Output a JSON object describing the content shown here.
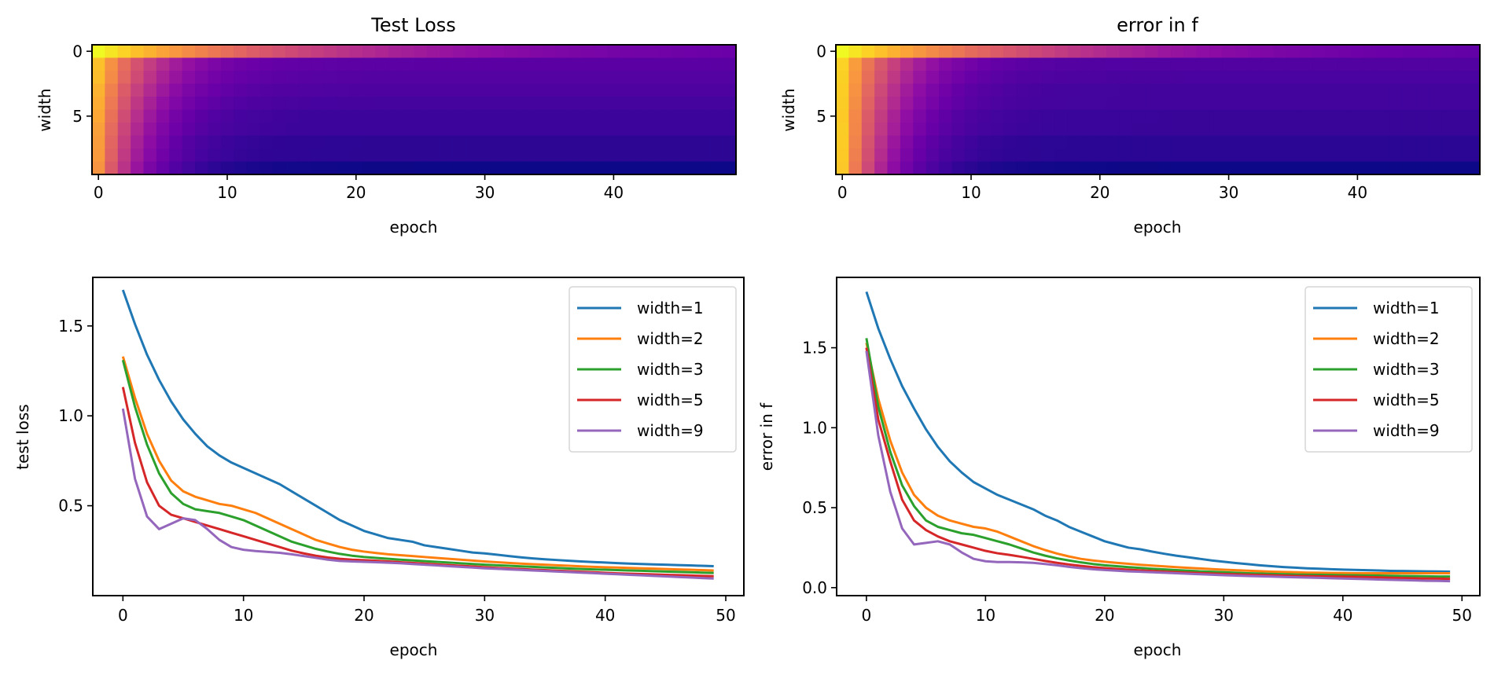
{
  "chart_data": [
    {
      "type": "heatmap",
      "title": "Test Loss",
      "xlabel": "epoch",
      "ylabel": "width",
      "colormap": "plasma",
      "x_ticks": [
        0,
        10,
        20,
        30,
        40
      ],
      "y_ticks": [
        0,
        5
      ],
      "n_rows": 10,
      "n_cols": 50,
      "row_start_values": [
        1.7,
        1.33,
        1.31,
        1.24,
        1.2,
        1.16,
        1.12,
        1.1,
        1.08,
        1.04
      ],
      "row_end_values": [
        0.16,
        0.15,
        0.14,
        0.13,
        0.12,
        0.11,
        0.11,
        0.1,
        0.1,
        0.09
      ],
      "value_range": [
        0.09,
        1.7
      ]
    },
    {
      "type": "heatmap",
      "title": "error in f",
      "xlabel": "epoch",
      "ylabel": "width",
      "colormap": "plasma",
      "x_ticks": [
        0,
        10,
        20,
        30,
        40
      ],
      "y_ticks": [
        0,
        5
      ],
      "n_rows": 10,
      "n_cols": 50,
      "row_start_values": [
        1.85,
        1.56,
        1.55,
        1.53,
        1.52,
        1.5,
        1.52,
        1.51,
        1.5,
        1.48
      ],
      "row_end_values": [
        0.1,
        0.09,
        0.08,
        0.07,
        0.07,
        0.06,
        0.06,
        0.05,
        0.05,
        0.04
      ],
      "value_range": [
        0.04,
        1.85
      ]
    },
    {
      "type": "line",
      "title": "",
      "xlabel": "epoch",
      "ylabel": "test loss",
      "xlim": [
        -2.5,
        51.5
      ],
      "ylim": [
        0.0,
        1.77
      ],
      "x_ticks": [
        0,
        10,
        20,
        30,
        40,
        50
      ],
      "y_ticks": [
        0.5,
        1.0,
        1.5
      ],
      "y_tick_labels": [
        "0.5",
        "1.0",
        "1.5"
      ],
      "grid": false,
      "legend": "top-right",
      "x": [
        0,
        1,
        2,
        3,
        4,
        5,
        6,
        7,
        8,
        9,
        10,
        11,
        12,
        13,
        14,
        15,
        16,
        17,
        18,
        19,
        20,
        21,
        22,
        23,
        24,
        25,
        26,
        27,
        28,
        29,
        30,
        31,
        32,
        33,
        34,
        35,
        36,
        37,
        38,
        39,
        40,
        41,
        42,
        43,
        44,
        45,
        46,
        47,
        48,
        49
      ],
      "series": [
        {
          "name": "width=1",
          "color": "#1f77b4",
          "values": [
            1.7,
            1.51,
            1.34,
            1.2,
            1.08,
            0.98,
            0.9,
            0.83,
            0.78,
            0.74,
            0.71,
            0.68,
            0.65,
            0.62,
            0.58,
            0.54,
            0.5,
            0.46,
            0.42,
            0.39,
            0.36,
            0.34,
            0.32,
            0.31,
            0.3,
            0.28,
            0.27,
            0.26,
            0.25,
            0.24,
            0.235,
            0.228,
            0.22,
            0.213,
            0.207,
            0.202,
            0.198,
            0.194,
            0.19,
            0.187,
            0.184,
            0.181,
            0.178,
            0.176,
            0.174,
            0.172,
            0.17,
            0.168,
            0.166,
            0.164
          ]
        },
        {
          "name": "width=2",
          "color": "#ff7f0e",
          "values": [
            1.33,
            1.1,
            0.9,
            0.75,
            0.64,
            0.58,
            0.55,
            0.53,
            0.51,
            0.5,
            0.48,
            0.46,
            0.43,
            0.4,
            0.37,
            0.34,
            0.31,
            0.29,
            0.27,
            0.255,
            0.245,
            0.237,
            0.23,
            0.225,
            0.22,
            0.215,
            0.21,
            0.205,
            0.2,
            0.195,
            0.19,
            0.186,
            0.182,
            0.178,
            0.175,
            0.172,
            0.169,
            0.166,
            0.163,
            0.16,
            0.158,
            0.156,
            0.154,
            0.152,
            0.15,
            0.148,
            0.146,
            0.144,
            0.142,
            0.14
          ]
        },
        {
          "name": "width=3",
          "color": "#2ca02c",
          "values": [
            1.31,
            1.05,
            0.84,
            0.68,
            0.57,
            0.51,
            0.48,
            0.47,
            0.46,
            0.44,
            0.42,
            0.39,
            0.36,
            0.33,
            0.3,
            0.28,
            0.26,
            0.245,
            0.232,
            0.222,
            0.215,
            0.21,
            0.205,
            0.2,
            0.196,
            0.192,
            0.188,
            0.184,
            0.18,
            0.176,
            0.172,
            0.169,
            0.166,
            0.163,
            0.16,
            0.157,
            0.154,
            0.151,
            0.148,
            0.146,
            0.144,
            0.142,
            0.14,
            0.138,
            0.136,
            0.134,
            0.132,
            0.13,
            0.128,
            0.126
          ]
        },
        {
          "name": "width=5",
          "color": "#d62728",
          "values": [
            1.16,
            0.85,
            0.63,
            0.5,
            0.45,
            0.43,
            0.41,
            0.39,
            0.37,
            0.35,
            0.33,
            0.31,
            0.29,
            0.27,
            0.25,
            0.235,
            0.222,
            0.212,
            0.205,
            0.2,
            0.197,
            0.194,
            0.19,
            0.186,
            0.182,
            0.178,
            0.174,
            0.17,
            0.166,
            0.162,
            0.158,
            0.154,
            0.151,
            0.148,
            0.145,
            0.142,
            0.139,
            0.136,
            0.133,
            0.13,
            0.127,
            0.124,
            0.122,
            0.12,
            0.118,
            0.116,
            0.114,
            0.112,
            0.11,
            0.108
          ]
        },
        {
          "name": "width=9",
          "color": "#9467bd",
          "values": [
            1.04,
            0.65,
            0.44,
            0.37,
            0.4,
            0.43,
            0.42,
            0.37,
            0.31,
            0.27,
            0.255,
            0.248,
            0.243,
            0.238,
            0.23,
            0.22,
            0.21,
            0.2,
            0.193,
            0.19,
            0.188,
            0.186,
            0.183,
            0.18,
            0.176,
            0.172,
            0.168,
            0.164,
            0.16,
            0.156,
            0.152,
            0.149,
            0.146,
            0.143,
            0.14,
            0.137,
            0.134,
            0.131,
            0.128,
            0.125,
            0.122,
            0.119,
            0.116,
            0.113,
            0.11,
            0.107,
            0.104,
            0.101,
            0.098,
            0.095
          ]
        }
      ]
    },
    {
      "type": "line",
      "title": "",
      "xlabel": "epoch",
      "ylabel": "error in f",
      "xlim": [
        -2.5,
        51.5
      ],
      "ylim": [
        -0.05,
        1.94
      ],
      "x_ticks": [
        0,
        10,
        20,
        30,
        40,
        50
      ],
      "y_ticks": [
        0.0,
        0.5,
        1.0,
        1.5
      ],
      "y_tick_labels": [
        "0.0",
        "0.5",
        "1.0",
        "1.5"
      ],
      "grid": false,
      "legend": "top-right",
      "x": [
        0,
        1,
        2,
        3,
        4,
        5,
        6,
        7,
        8,
        9,
        10,
        11,
        12,
        13,
        14,
        15,
        16,
        17,
        18,
        19,
        20,
        21,
        22,
        23,
        24,
        25,
        26,
        27,
        28,
        29,
        30,
        31,
        32,
        33,
        34,
        35,
        36,
        37,
        38,
        39,
        40,
        41,
        42,
        43,
        44,
        45,
        46,
        47,
        48,
        49
      ],
      "series": [
        {
          "name": "width=1",
          "color": "#1f77b4",
          "values": [
            1.85,
            1.62,
            1.43,
            1.26,
            1.12,
            0.99,
            0.88,
            0.79,
            0.72,
            0.66,
            0.62,
            0.58,
            0.55,
            0.52,
            0.49,
            0.45,
            0.42,
            0.38,
            0.35,
            0.32,
            0.29,
            0.27,
            0.25,
            0.24,
            0.225,
            0.212,
            0.2,
            0.19,
            0.18,
            0.17,
            0.162,
            0.154,
            0.147,
            0.14,
            0.134,
            0.129,
            0.125,
            0.121,
            0.118,
            0.115,
            0.113,
            0.111,
            0.109,
            0.107,
            0.105,
            0.104,
            0.103,
            0.102,
            0.101,
            0.1
          ]
        },
        {
          "name": "width=2",
          "color": "#ff7f0e",
          "values": [
            1.53,
            1.18,
            0.92,
            0.72,
            0.58,
            0.5,
            0.45,
            0.42,
            0.4,
            0.38,
            0.37,
            0.35,
            0.32,
            0.29,
            0.26,
            0.235,
            0.213,
            0.195,
            0.18,
            0.17,
            0.162,
            0.155,
            0.149,
            0.143,
            0.138,
            0.133,
            0.128,
            0.124,
            0.12,
            0.116,
            0.112,
            0.109,
            0.106,
            0.103,
            0.1,
            0.098,
            0.096,
            0.094,
            0.093,
            0.092,
            0.091,
            0.09,
            0.09,
            0.09,
            0.09,
            0.09,
            0.09,
            0.09,
            0.09,
            0.09
          ]
        },
        {
          "name": "width=3",
          "color": "#2ca02c",
          "values": [
            1.56,
            1.13,
            0.85,
            0.64,
            0.51,
            0.42,
            0.38,
            0.36,
            0.34,
            0.33,
            0.31,
            0.29,
            0.27,
            0.245,
            0.22,
            0.2,
            0.183,
            0.17,
            0.158,
            0.148,
            0.14,
            0.134,
            0.128,
            0.123,
            0.118,
            0.114,
            0.11,
            0.106,
            0.102,
            0.099,
            0.096,
            0.093,
            0.09,
            0.088,
            0.086,
            0.084,
            0.082,
            0.081,
            0.08,
            0.079,
            0.078,
            0.077,
            0.076,
            0.075,
            0.074,
            0.073,
            0.072,
            0.071,
            0.07,
            0.07
          ]
        },
        {
          "name": "width=5",
          "color": "#d62728",
          "values": [
            1.5,
            1.05,
            0.79,
            0.55,
            0.42,
            0.36,
            0.32,
            0.29,
            0.27,
            0.25,
            0.23,
            0.215,
            0.205,
            0.193,
            0.18,
            0.167,
            0.155,
            0.145,
            0.136,
            0.128,
            0.122,
            0.117,
            0.112,
            0.108,
            0.104,
            0.1,
            0.097,
            0.094,
            0.091,
            0.088,
            0.085,
            0.083,
            0.081,
            0.079,
            0.077,
            0.075,
            0.073,
            0.072,
            0.071,
            0.07,
            0.069,
            0.068,
            0.066,
            0.064,
            0.062,
            0.06,
            0.058,
            0.057,
            0.056,
            0.055
          ]
        },
        {
          "name": "width=9",
          "color": "#9467bd",
          "values": [
            1.48,
            0.95,
            0.6,
            0.37,
            0.27,
            0.28,
            0.29,
            0.27,
            0.22,
            0.18,
            0.165,
            0.16,
            0.16,
            0.158,
            0.155,
            0.148,
            0.14,
            0.13,
            0.122,
            0.115,
            0.11,
            0.106,
            0.102,
            0.099,
            0.096,
            0.093,
            0.09,
            0.087,
            0.084,
            0.081,
            0.078,
            0.075,
            0.073,
            0.071,
            0.069,
            0.067,
            0.065,
            0.063,
            0.061,
            0.059,
            0.057,
            0.055,
            0.053,
            0.051,
            0.049,
            0.047,
            0.045,
            0.043,
            0.042,
            0.04
          ]
        }
      ]
    }
  ]
}
